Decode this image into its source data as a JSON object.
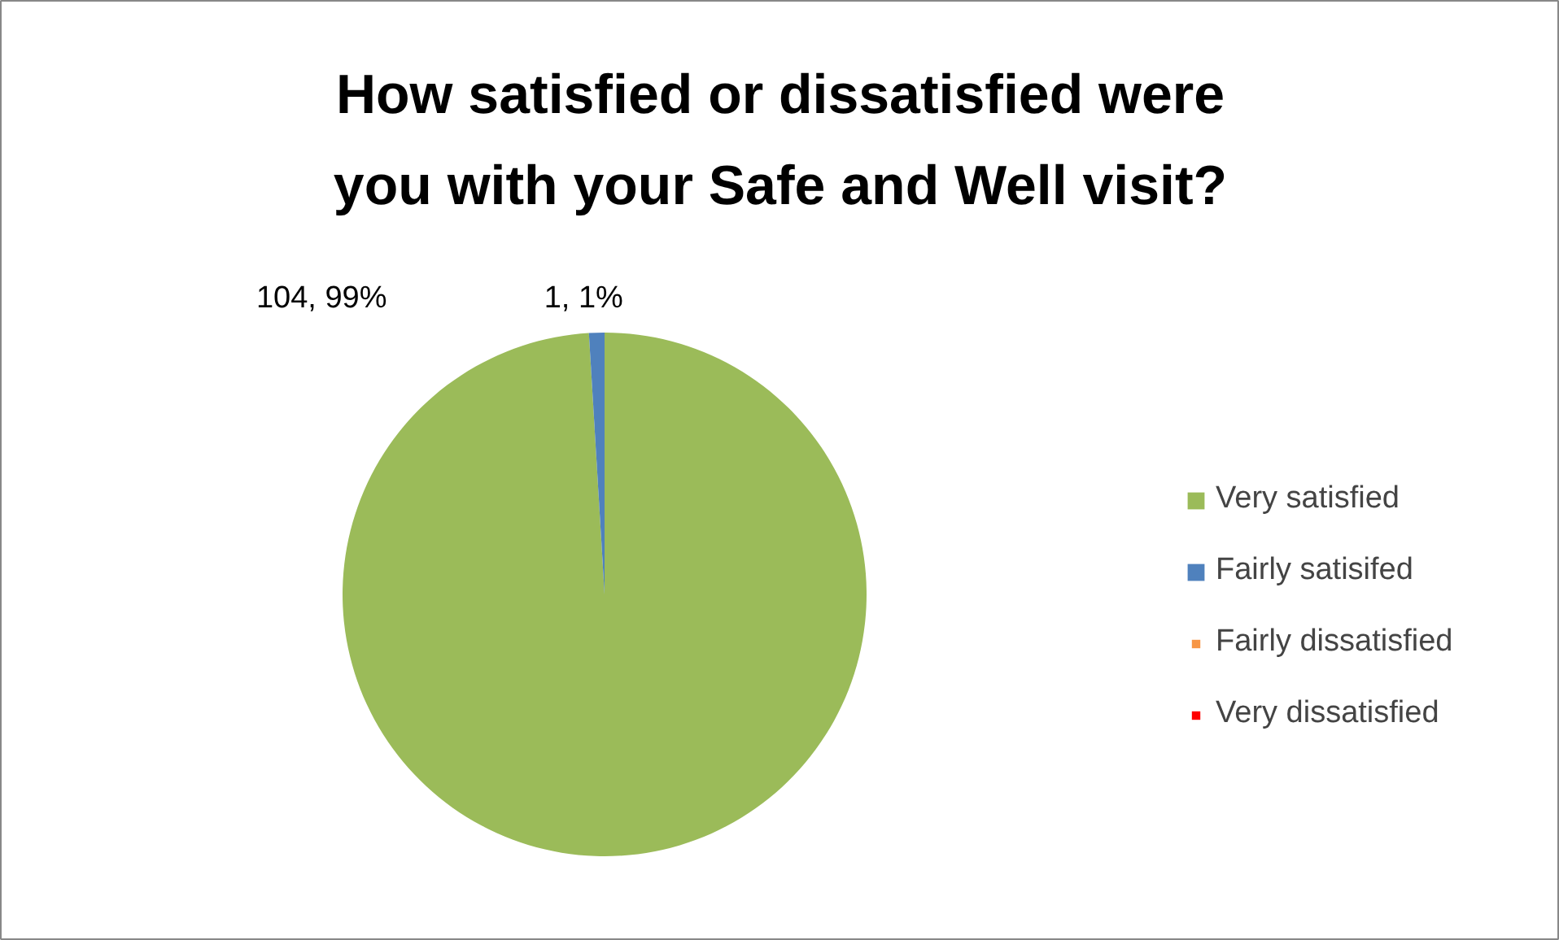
{
  "chart_data": {
    "type": "pie",
    "title": "How satisfied or dissatisfied were you with your Safe and Well visit?",
    "categories": [
      "Very satisfied",
      "Fairly satisifed",
      "Fairly dissatisfied",
      "Very dissatisfied"
    ],
    "values": [
      104,
      1,
      0,
      0
    ],
    "colors": [
      "#9bbb59",
      "#4f81bd",
      "#f79646",
      "#ff0000"
    ],
    "value_labels": [
      "104, 99%",
      "1, 1%",
      null,
      null
    ],
    "legend": "right"
  }
}
